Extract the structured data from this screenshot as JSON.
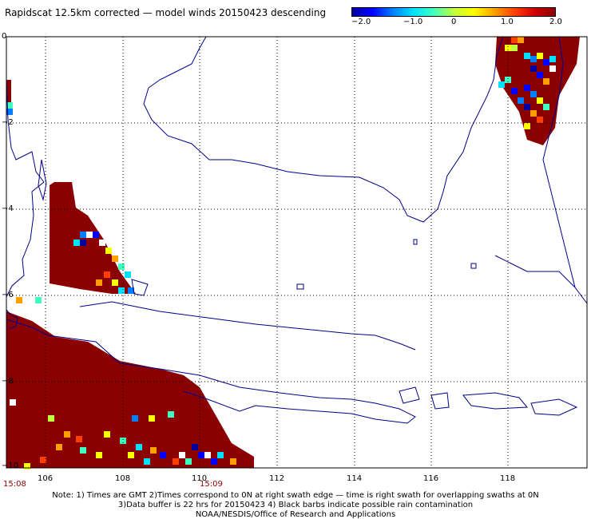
{
  "title": "Rapidscat 12.5km corrected — model winds 20150423 descending",
  "colorbar": {
    "labels": [
      "−2.0",
      "−1.0",
      "0",
      "1.0",
      "2.0"
    ],
    "min": -2.0,
    "max": 2.0,
    "colors": [
      "#0000a0",
      "#0000ff",
      "#0080ff",
      "#00e0ff",
      "#40ffc0",
      "#c0ff40",
      "#ffff00",
      "#ffa000",
      "#ff4000",
      "#d00000",
      "#8b0000"
    ]
  },
  "axes": {
    "y_labels": [
      "0",
      "−2",
      "−4",
      "−6",
      "−8",
      "−10"
    ],
    "x_labels": [
      "106",
      "108",
      "110",
      "112",
      "114",
      "116",
      "118"
    ],
    "lon_range": [
      105,
      120.5
    ],
    "lat_range": [
      -10,
      0
    ],
    "grid": true
  },
  "times": [
    "15:08",
    "15:09"
  ],
  "notes": [
    "Note: 1) Times are GMT 2)Times correspond to 0N at right swath edge — time is right swath for overlapping swaths at 0N",
    "3)Data buffer is 22 hrs for 20150423 4) Black barbs indicate possible rain contamination",
    "NOAA/NESDIS/Office of Research and Applications"
  ],
  "colors": {
    "coast": "#00008b",
    "rain": "#8b0000",
    "grid": "#000000"
  }
}
